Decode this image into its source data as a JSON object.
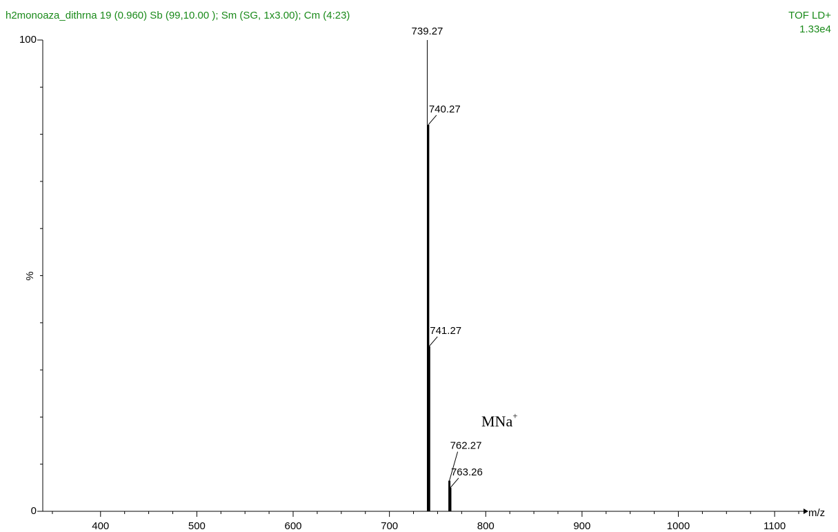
{
  "chart_data": {
    "type": "stick",
    "title": "h2monoaza_dithrna  19 (0.960) Sb (99,10.00 ); Sm (SG, 1x3.00); Cm (4:23)",
    "instrument": "TOF LD+",
    "intensity": "1.33e4",
    "annotation": {
      "text": "MNa",
      "sup": "+"
    },
    "xlabel": "m/z",
    "ylabel": "%",
    "x": [
      739.27,
      740.27,
      741.27,
      762.27,
      763.26
    ],
    "values": [
      100,
      82,
      35,
      6.5,
      5
    ],
    "color": "#000000",
    "xlim": [
      340,
      1130
    ],
    "xticks": [
      400,
      500,
      600,
      700,
      800,
      900,
      1000,
      1100
    ],
    "xminorticks": [
      350,
      425,
      450,
      475,
      525,
      550,
      575,
      625,
      650,
      675,
      725,
      750,
      775,
      825,
      850,
      875,
      925,
      950,
      975,
      1025,
      1050,
      1075,
      1125
    ],
    "ylim": [
      0,
      100
    ],
    "yticks": [
      0,
      100
    ],
    "yminorticks": [
      10,
      20,
      30,
      40,
      50,
      60,
      70,
      80,
      90
    ]
  }
}
